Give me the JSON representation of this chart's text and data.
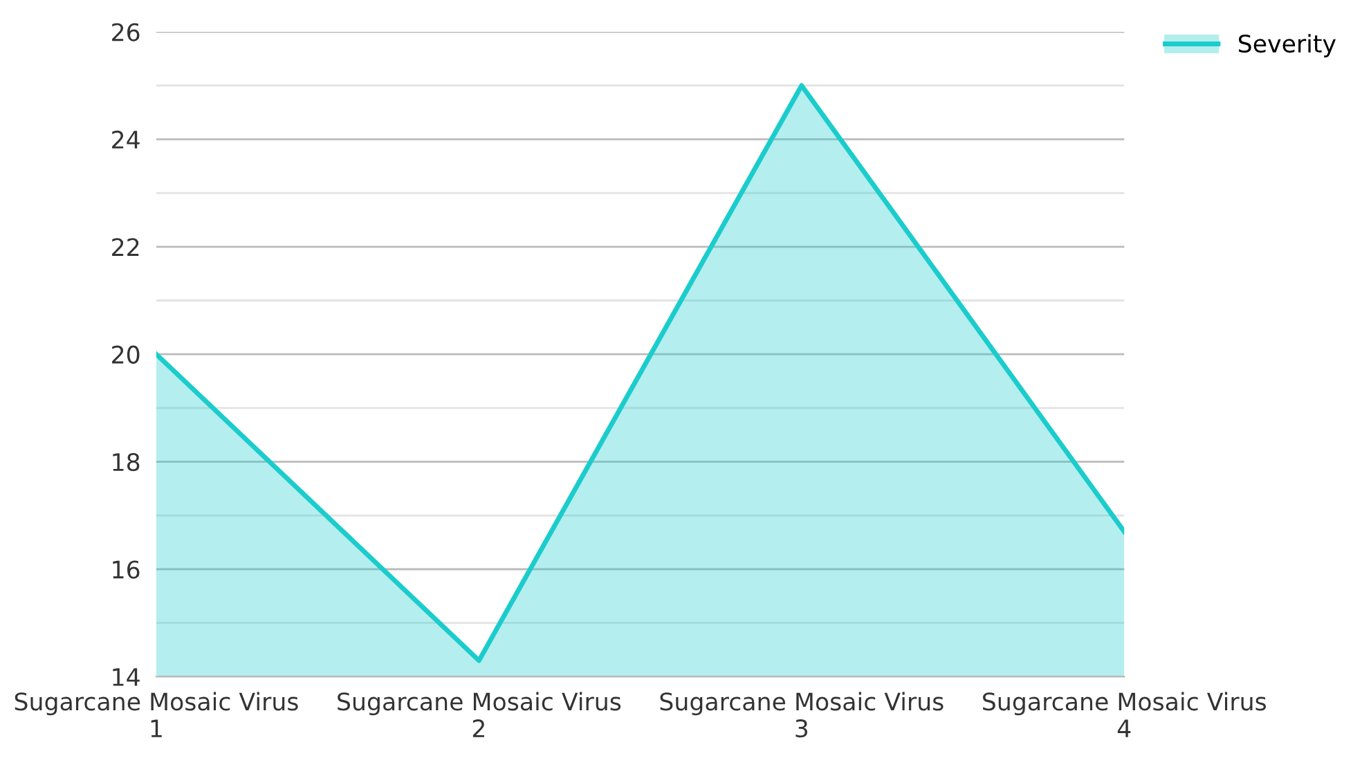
{
  "chart_data": {
    "type": "area",
    "categories": [
      "Sugarcane Mosaic Virus 1",
      "Sugarcane Mosaic Virus 2",
      "Sugarcane Mosaic Virus 3",
      "Sugarcane Mosaic Virus 4"
    ],
    "series": [
      {
        "name": "Severity",
        "color": "#1ccccc",
        "values": [
          20,
          14.3,
          25,
          16.7
        ]
      }
    ],
    "ylim": [
      14,
      26
    ],
    "yticks": [
      14,
      {
        "value": 15,
        "label": null
      },
      16,
      {
        "value": 17,
        "label": null
      },
      18,
      {
        "value": 19,
        "label": null
      },
      20,
      {
        "value": 21,
        "label": null
      },
      22,
      {
        "value": 23,
        "label": null
      },
      24,
      {
        "value": 25,
        "label": null
      },
      26
    ],
    "grid": "y",
    "legend": "top right"
  }
}
